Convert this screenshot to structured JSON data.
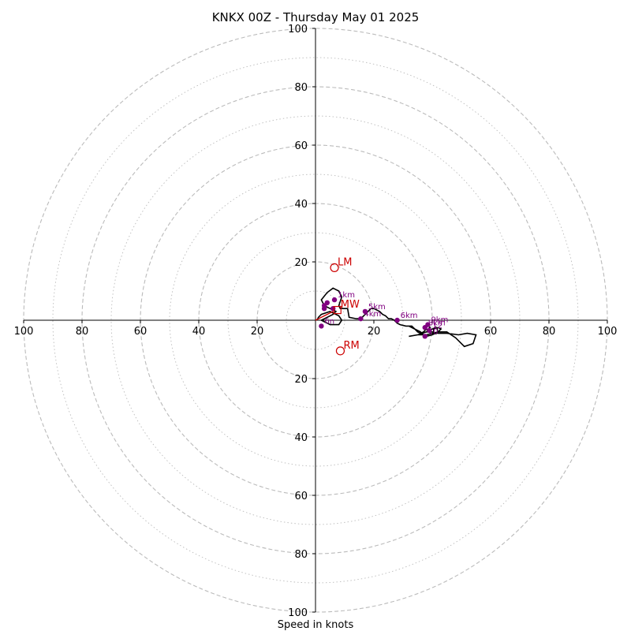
{
  "chart_data": {
    "type": "scatter",
    "title": "KNKX 00Z - Thursday May 01 2025",
    "xlabel": "Speed in knots",
    "ylabel": "",
    "xlim": [
      -100,
      100
    ],
    "ylim": [
      -100,
      100
    ],
    "grid": true,
    "rings_major": [
      20,
      40,
      60,
      80,
      100
    ],
    "rings_minor": [
      10,
      30,
      50,
      70,
      90
    ],
    "x_tick_labels": [
      "100",
      "80",
      "60",
      "40",
      "20",
      "20",
      "40",
      "60",
      "80",
      "100"
    ],
    "y_tick_labels": [
      "100",
      "80",
      "60",
      "40",
      "20",
      "20",
      "40",
      "60",
      "80",
      "100"
    ],
    "tick_values": [
      -100,
      -80,
      -60,
      -40,
      -20,
      20,
      40,
      60,
      80,
      100
    ],
    "colors": {
      "hodograph": "#000000",
      "levels": "#800080",
      "motions": "#cc0000",
      "grid": "#bbbbbb"
    },
    "hodograph": {
      "x": [
        0.5,
        1,
        2,
        5,
        8,
        9,
        8,
        5,
        4,
        3,
        2,
        4,
        6,
        7,
        5,
        3,
        2,
        4,
        6,
        8,
        9,
        8,
        8.5,
        11,
        11.5,
        14,
        15,
        16,
        17,
        18,
        19,
        20,
        21,
        22,
        23,
        24,
        25,
        26,
        27,
        28,
        29,
        31,
        33,
        34,
        35,
        36,
        37,
        38,
        39,
        40,
        42,
        45,
        49,
        52,
        55,
        54,
        51,
        48,
        45,
        42,
        38,
        35,
        32,
        35,
        38,
        40,
        42,
        43,
        42,
        40,
        38,
        37,
        36,
        34,
        32
      ],
      "y": [
        0,
        1,
        2,
        3,
        1.5,
        0,
        -1.5,
        -1.5,
        -1,
        -0.5,
        0,
        1,
        2,
        3,
        4,
        5,
        7,
        9.5,
        11,
        10,
        8,
        5,
        4,
        4,
        1,
        0.5,
        0.5,
        1,
        2,
        3,
        4,
        4,
        3.5,
        3,
        2,
        1.5,
        0.5,
        0.5,
        0,
        -1,
        -1.5,
        -2,
        -2,
        -3,
        -4,
        -4.5,
        -4,
        -3,
        -4,
        -4,
        -4.5,
        -4.5,
        -5,
        -4.5,
        -5,
        -8,
        -9,
        -6,
        -4,
        -4,
        -5,
        -5,
        -5.5,
        -5,
        -4,
        -3,
        -2.5,
        -3,
        -4,
        -5,
        -5.5,
        -5,
        -4,
        -3,
        -2
      ]
    },
    "height_markers": [
      {
        "label": "1km",
        "x": 6.5,
        "y": 7
      },
      {
        "label": "",
        "x": 4,
        "y": 6
      },
      {
        "label": "",
        "x": 3,
        "y": 5
      },
      {
        "label": "",
        "x": 3,
        "y": 4
      },
      {
        "label": "",
        "x": 6,
        "y": 4
      },
      {
        "label": "6n",
        "x": 2,
        "y": -2
      },
      {
        "label": "4km",
        "x": 15.5,
        "y": 0.5
      },
      {
        "label": "5km",
        "x": 17,
        "y": 3
      },
      {
        "label": "6km",
        "x": 28,
        "y": 0
      },
      {
        "label": "8km",
        "x": 37.5,
        "y": -2.5
      },
      {
        "label": "9km",
        "x": 38.5,
        "y": -1.5
      },
      {
        "label": "10",
        "x": 37.5,
        "y": -5.5
      },
      {
        "label": "12",
        "x": 39,
        "y": -3.5
      }
    ],
    "storm_motions": [
      {
        "label": "LM",
        "x": 6.5,
        "y": 18
      },
      {
        "label": "RM",
        "x": 8.5,
        "y": -10.5
      },
      {
        "label": "MW",
        "x": 7.5,
        "y": 3.5
      }
    ],
    "shear_vector": {
      "x0": 0,
      "y0": 0,
      "x1": 6,
      "y1": 3
    }
  }
}
